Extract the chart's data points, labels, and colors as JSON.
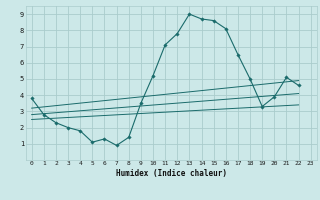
{
  "xlabel": "Humidex (Indice chaleur)",
  "background_color": "#cce8e8",
  "grid_color": "#aacccc",
  "line_color": "#1a6b6b",
  "xlim": [
    -0.5,
    23.5
  ],
  "ylim": [
    0,
    9.5
  ],
  "xticks": [
    0,
    1,
    2,
    3,
    4,
    5,
    6,
    7,
    8,
    9,
    10,
    11,
    12,
    13,
    14,
    15,
    16,
    17,
    18,
    19,
    20,
    21,
    22,
    23
  ],
  "yticks": [
    1,
    2,
    3,
    4,
    5,
    6,
    7,
    8,
    9
  ],
  "curve1_x": [
    0,
    1,
    2,
    3,
    4,
    5,
    6,
    7,
    8,
    9,
    10,
    11,
    12,
    13,
    14,
    15,
    16,
    17,
    18,
    19,
    20,
    21,
    22
  ],
  "curve1_y": [
    3.8,
    2.8,
    2.3,
    2.0,
    1.8,
    1.1,
    1.3,
    0.9,
    1.4,
    3.5,
    5.2,
    7.1,
    7.8,
    9.0,
    8.7,
    8.6,
    8.1,
    6.5,
    5.0,
    3.3,
    3.9,
    5.1,
    4.6
  ],
  "line1_x": [
    0,
    22
  ],
  "line1_y": [
    3.2,
    4.9
  ],
  "line2_x": [
    0,
    22
  ],
  "line2_y": [
    2.8,
    4.1
  ],
  "line3_x": [
    0,
    22
  ],
  "line3_y": [
    2.5,
    3.4
  ]
}
